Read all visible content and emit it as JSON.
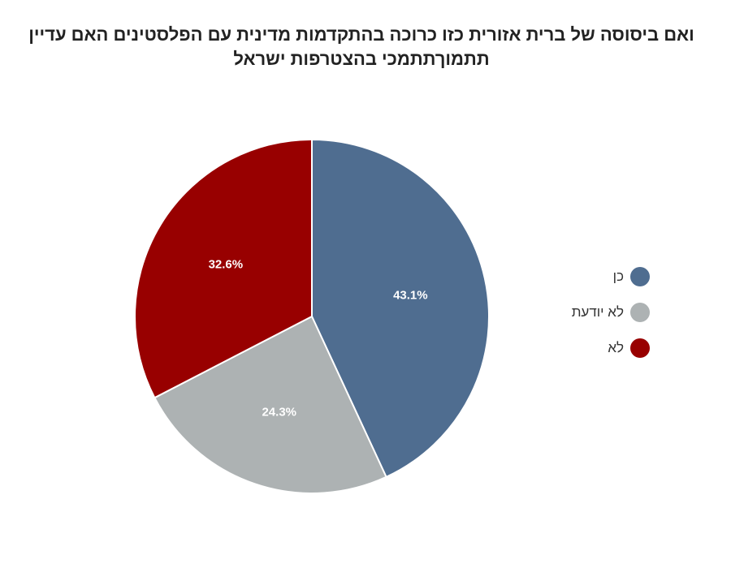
{
  "title": "ואם ביסוסה של ברית אזורית כזו כרוכה בהתקדמות מדינית עם הפלסטינים האם עדיין תתמוךתתמכי בהצטרפות ישראל",
  "chart_data": {
    "type": "pie",
    "title": "ואם ביסוסה של ברית אזורית כזו כרוכה בהתקדמות מדינית עם הפלסטינים האם עדיין תתמוךתתמכי בהצטרפות ישראל",
    "slices": [
      {
        "label": "כן",
        "value": 43.1,
        "display": "43.1%",
        "color": "#4f6d90"
      },
      {
        "label": "לא יודעת",
        "value": 24.3,
        "display": "24.3%",
        "color": "#adb2b3"
      },
      {
        "label": "לא",
        "value": 32.6,
        "display": "32.6%",
        "color": "#980000"
      }
    ],
    "legend_position": "right",
    "start_angle": "top, clockwise"
  }
}
